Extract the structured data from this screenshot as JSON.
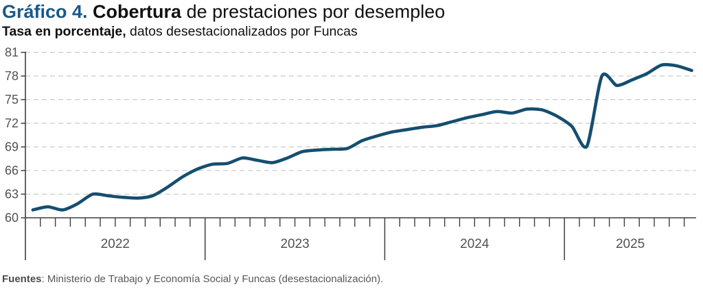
{
  "header": {
    "title_prefix": "Gráfico 4. ",
    "title_bold": "Cobertura ",
    "title_rest": "de prestaciones por desempleo",
    "subtitle_bold": "Tasa en porcentaje, ",
    "subtitle_rest": "datos desestacionalizados por Funcas"
  },
  "footer": {
    "label": "Fuentes",
    "text": ": Ministerio de Trabajo y Economía Social y Funcas (desestacionalización)."
  },
  "colors": {
    "title_blue": "#1a588c",
    "line": "#154e70",
    "grid": "#c9cacb",
    "axis": "#3d3d3f",
    "tick_label": "#515256"
  },
  "chart_data": {
    "type": "line",
    "title": "Cobertura de prestaciones por desempleo",
    "subtitle": "Tasa en porcentaje, datos desestacionalizados por Funcas",
    "unit": "percent",
    "x_start": "2022-01",
    "x_end": "2025-09",
    "years": [
      "2022",
      "2023",
      "2024",
      "2025"
    ],
    "months_per_year": [
      12,
      12,
      12,
      9
    ],
    "y_ticks": [
      60,
      63,
      66,
      69,
      72,
      75,
      78,
      81
    ],
    "ylim": [
      60,
      81
    ],
    "grid": "dashed-horizontal",
    "legend": "none",
    "series": [
      {
        "name": "Tasa de cobertura de prestaciones por desempleo (desestacionalizada)",
        "values": [
          61.0,
          61.4,
          61.0,
          61.8,
          63.0,
          62.8,
          62.6,
          62.5,
          62.8,
          63.9,
          65.2,
          66.2,
          66.8,
          66.9,
          67.6,
          67.3,
          67.0,
          67.6,
          68.4,
          68.6,
          68.7,
          68.8,
          69.8,
          70.4,
          70.9,
          71.2,
          71.5,
          71.7,
          72.2,
          72.7,
          73.1,
          73.5,
          73.3,
          73.8,
          73.7,
          72.9,
          71.6,
          69.1,
          78.0,
          76.8,
          77.5,
          78.3,
          79.4,
          79.3,
          78.7
        ]
      }
    ]
  }
}
